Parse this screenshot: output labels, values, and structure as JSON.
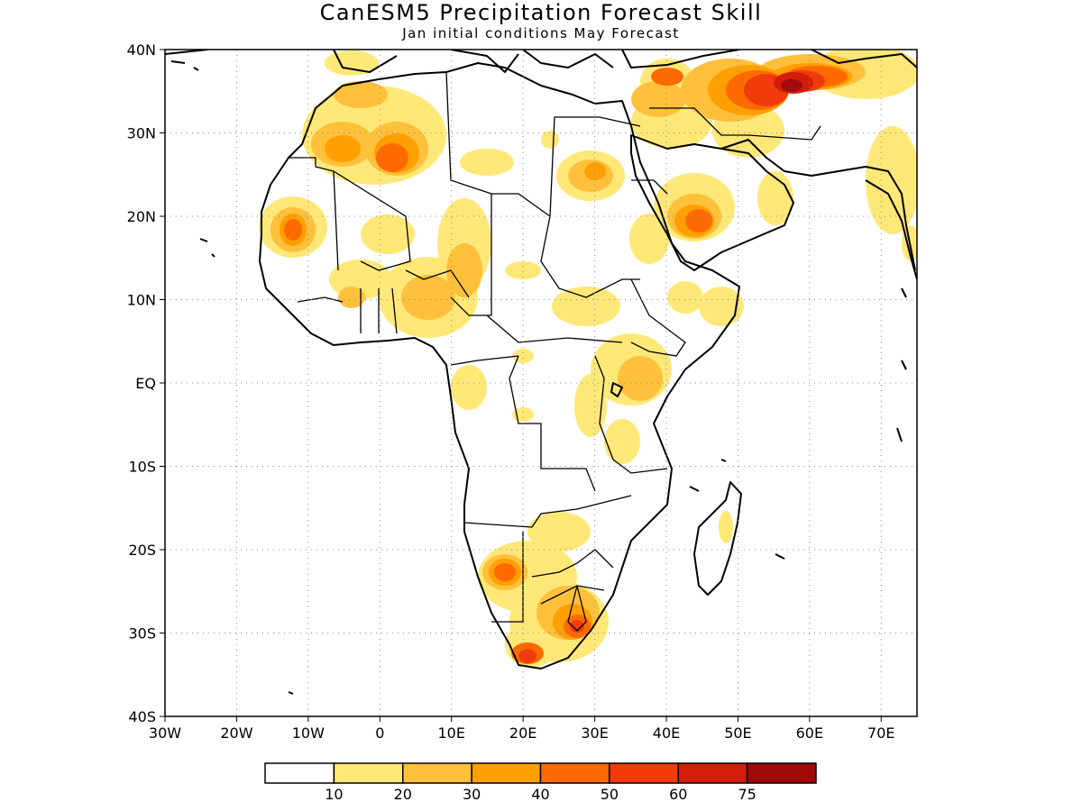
{
  "title": "CanESM5 Precipitation Forecast Skill",
  "subtitle": "Jan initial conditions   May Forecast",
  "map": {
    "lon_range": [
      -30,
      75
    ],
    "lat_range": [
      -40,
      40
    ],
    "grid": true,
    "lon_labels": [
      "30W",
      "20W",
      "10W",
      "0",
      "10E",
      "20E",
      "30E",
      "40E",
      "50E",
      "60E",
      "70E"
    ],
    "lat_labels": [
      "40N",
      "30N",
      "20N",
      "10N",
      "EQ",
      "10S",
      "20S",
      "30S",
      "40S"
    ]
  },
  "colorbar": {
    "colors": [
      "#ffffff",
      "#ffe878",
      "#ffc03c",
      "#ffa000",
      "#ff6a00",
      "#f03c0a",
      "#d21e0a",
      "#a00a0a"
    ],
    "labels": [
      "10",
      "20",
      "30",
      "40",
      "50",
      "60",
      "75"
    ]
  }
}
